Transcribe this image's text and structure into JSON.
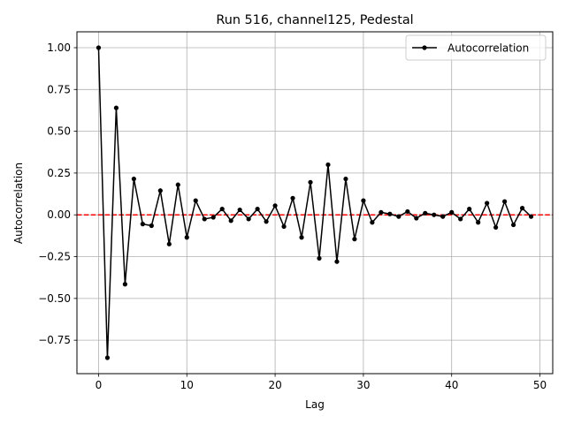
{
  "chart_data": {
    "type": "line",
    "title": "Run 516, channel125, Pedestal",
    "xlabel": "Lag",
    "ylabel": "Autocorrelation",
    "xlim": [
      -2.45,
      51.45
    ],
    "ylim": [
      -0.95,
      1.095
    ],
    "xticks": [
      0,
      10,
      20,
      30,
      40,
      50
    ],
    "xtick_labels": [
      "0",
      "10",
      "20",
      "30",
      "40",
      "50"
    ],
    "yticks": [
      -0.75,
      -0.5,
      -0.25,
      0.0,
      0.25,
      0.5,
      0.75,
      1.0
    ],
    "ytick_labels": [
      "−0.75",
      "−0.50",
      "−0.25",
      "0.00",
      "0.25",
      "0.50",
      "0.75",
      "1.00"
    ],
    "grid": true,
    "legend_position": "top-right",
    "series": [
      {
        "name": "Autocorrelation",
        "color": "#000000",
        "marker": "circle",
        "x": [
          0,
          1,
          2,
          3,
          4,
          5,
          6,
          7,
          8,
          9,
          10,
          11,
          12,
          13,
          14,
          15,
          16,
          17,
          18,
          19,
          20,
          21,
          22,
          23,
          24,
          25,
          26,
          27,
          28,
          29,
          30,
          31,
          32,
          33,
          34,
          35,
          36,
          37,
          38,
          39,
          40,
          41,
          42,
          43,
          44,
          45,
          46,
          47,
          48,
          49
        ],
        "y": [
          1.0,
          -0.855,
          0.64,
          -0.415,
          0.215,
          -0.055,
          -0.065,
          0.145,
          -0.175,
          0.18,
          -0.135,
          0.085,
          -0.025,
          -0.015,
          0.035,
          -0.035,
          0.03,
          -0.025,
          0.035,
          -0.04,
          0.055,
          -0.07,
          0.1,
          -0.135,
          0.195,
          -0.26,
          0.3,
          -0.28,
          0.215,
          -0.145,
          0.085,
          -0.045,
          0.015,
          0.005,
          -0.01,
          0.02,
          -0.02,
          0.01,
          0.0,
          -0.01,
          0.015,
          -0.025,
          0.035,
          -0.045,
          0.07,
          -0.075,
          0.08,
          -0.06,
          0.04,
          -0.01
        ]
      }
    ],
    "reference_line": {
      "y": 0.0,
      "color": "#ff0000",
      "style": "dashed"
    }
  }
}
